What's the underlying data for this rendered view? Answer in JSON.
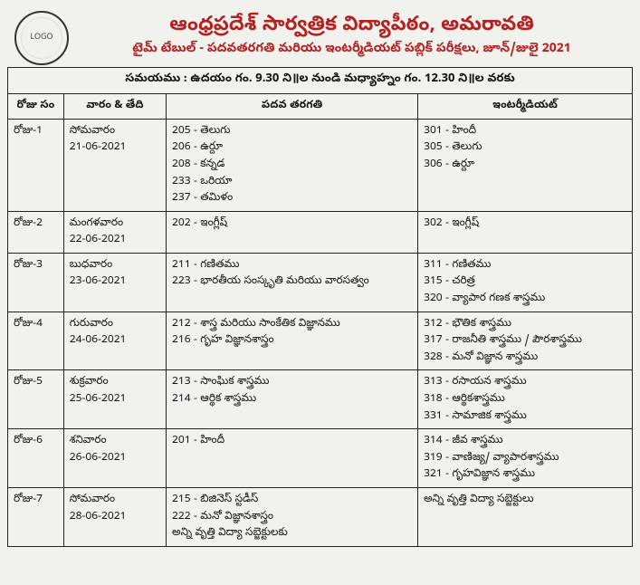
{
  "header": {
    "title": "ఆంధ్రప్రదేశ్ సార్వత్రిక విద్యాపీఠం, అమరావతి",
    "subtitle": "టైమ్ టేబుల్ - పదవతరగతి మరియు ఇంటర్మీడియట్ పబ్లిక్ పరీక్షలు, జూన్/జులై 2021",
    "logo_label": "LOGO"
  },
  "timing": "సమయము : ఉదయం గం. 9.30 ని॥ల నుండి మధ్యాహ్నం గం. 12.30 ని॥ల వరకు",
  "columns": {
    "c1": "రోజు సం",
    "c2": "వారం & తేది",
    "c3": "పదవ తరగతి",
    "c4": "ఇంటర్మీడియట్"
  },
  "rows": [
    {
      "day": "రోజు-1",
      "day_date": "సోమవారం\n21-06-2021",
      "tenth": [
        "205 - తెలుగు",
        "206 - ఉర్దూ",
        "208 - కన్నడ",
        "233 - ఒరియా",
        "237 - తమిళం"
      ],
      "inter": [
        "301 - హిందీ",
        "305 - తెలుగు",
        "306 - ఉర్దూ"
      ]
    },
    {
      "day": "రోజు-2",
      "day_date": "మంగళవారం\n22-06-2021",
      "tenth": [
        "202 - ఇంగ్లీష్"
      ],
      "inter": [
        "302 - ఇంగ్లీష్"
      ]
    },
    {
      "day": "రోజు-3",
      "day_date": "బుధవారం\n23-06-2021",
      "tenth": [
        "211 - గణితము",
        "223 - భారతీయ సంస్కృతి మరియు వారసత్వం"
      ],
      "inter": [
        "311 - గణితము",
        "315 - చరిత్ర",
        "320 - వ్యాపార గణక శాస్త్రము"
      ]
    },
    {
      "day": "రోజు-4",
      "day_date": "గురువారం\n24-06-2021",
      "tenth": [
        "212 - శాస్త్ర మరియు సాంకేతిక విజ్ఞానము",
        "216 - గృహ విజ్ఞానశాస్త్రం"
      ],
      "inter": [
        "312 - భౌతిక శాస్త్రము",
        "317 - రాజనీతి శాస్త్రము / పౌరశాస్త్రము",
        "328 - మనో విజ్ఞాన శాస్త్రము"
      ]
    },
    {
      "day": "రోజు-5",
      "day_date": "శుక్రవారం\n25-06-2021",
      "tenth": [
        "213 - సాంఘిక శాస్త్రము",
        "214 - ఆర్థిక శాస్త్రము"
      ],
      "inter": [
        "313 - రసాయన శాస్త్రము",
        "318 - ఆర్థికశాస్త్రము",
        "331 - సామాజిక శాస్త్రము"
      ]
    },
    {
      "day": "రోజు-6",
      "day_date": "శనివారం\n26-06-2021",
      "tenth": [
        "201 - హిందీ"
      ],
      "inter": [
        "314 - జీవ శాస్త్రము",
        "319 - వాణిజ్య/ వ్యాపారశాస్త్రము",
        "321 - గృహవిజ్ఞాన శాస్త్రము"
      ]
    },
    {
      "day": "రోజు-7",
      "day_date": "సోమవారం\n28-06-2021",
      "tenth": [
        "215 - బిజినెస్ స్టడీస్",
        "222 - మనో విజ్ఞానశాస్త్రం",
        "అన్ని వృత్తి విద్యా సబ్జెక్టులకు"
      ],
      "inter": [
        "అన్ని వృత్తి విద్యా సబ్జెక్టులు"
      ]
    }
  ]
}
